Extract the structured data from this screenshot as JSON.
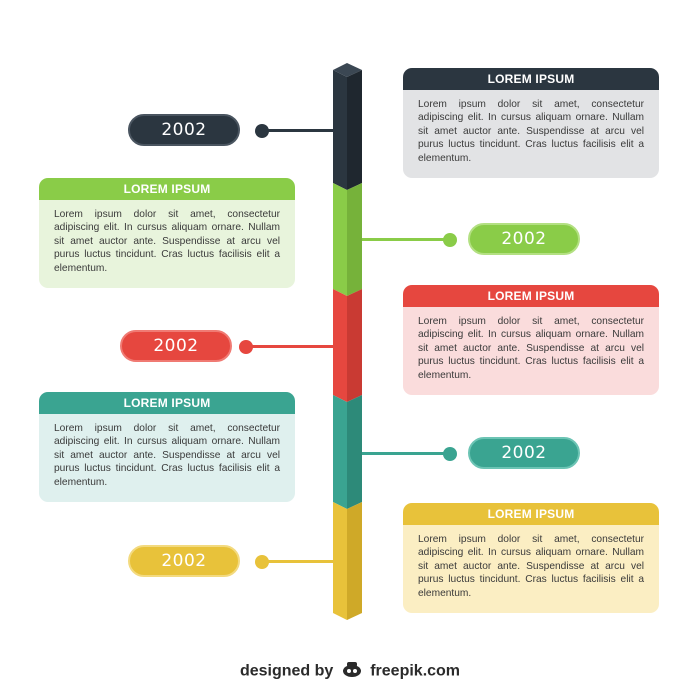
{
  "colors": {
    "navy": "#2b3640",
    "navy_dark": "#1f272f",
    "gray_card": "#e2e3e5",
    "green": "#8acc48",
    "green_dark": "#76b23a",
    "green_card": "#e8f4dc",
    "red": "#e6473f",
    "red_dark": "#c93a33",
    "red_card": "#fadcdc",
    "teal": "#3aa491",
    "teal_dark": "#2d8a79",
    "teal_card": "#dff0ee",
    "yellow": "#e8c23a",
    "yellow_dark": "#cfa928",
    "yellow_card": "#fbeec3"
  },
  "stages": [
    {
      "title": "LOREM IPSUM",
      "year": "2002",
      "text": "Lorem ipsum dolor sit amet, consectetur adipiscing elit. In cursus aliquam ornare. Nullam sit amet auctor ante. Suspendisse at arcu vel purus luctus tincidunt. Cras luctus facilisis elit a elementum.",
      "color": "navy"
    },
    {
      "title": "LOREM IPSUM",
      "year": "2002",
      "text": "Lorem ipsum dolor sit amet, consectetur adipiscing elit. In cursus aliquam ornare. Nullam sit amet auctor ante. Suspendisse at arcu vel purus luctus tincidunt. Cras luctus facilisis elit a elementum.",
      "color": "green"
    },
    {
      "title": "LOREM IPSUM",
      "year": "2002",
      "text": "Lorem ipsum dolor sit amet, consectetur adipiscing elit. In cursus aliquam ornare. Nullam sit amet auctor ante. Suspendisse at arcu vel purus luctus tincidunt. Cras luctus facilisis elit a elementum.",
      "color": "red"
    },
    {
      "title": "LOREM IPSUM",
      "year": "2002",
      "text": "Lorem ipsum dolor sit amet, consectetur adipiscing elit. In cursus aliquam ornare. Nullam sit amet auctor ante. Suspendisse at arcu vel purus luctus tincidunt. Cras luctus facilisis elit a elementum.",
      "color": "teal"
    },
    {
      "title": "LOREM IPSUM",
      "year": "2002",
      "text": "Lorem ipsum dolor sit amet, consectetur adipiscing elit. In cursus aliquam ornare. Nullam sit amet auctor ante. Suspendisse at arcu vel purus luctus tincidunt. Cras luctus facilisis elit a elementum.",
      "color": "yellow"
    }
  ],
  "footer": {
    "prefix": "designed by",
    "brand": "freepik.com",
    "brand_icon": "freepik-logo-icon"
  }
}
